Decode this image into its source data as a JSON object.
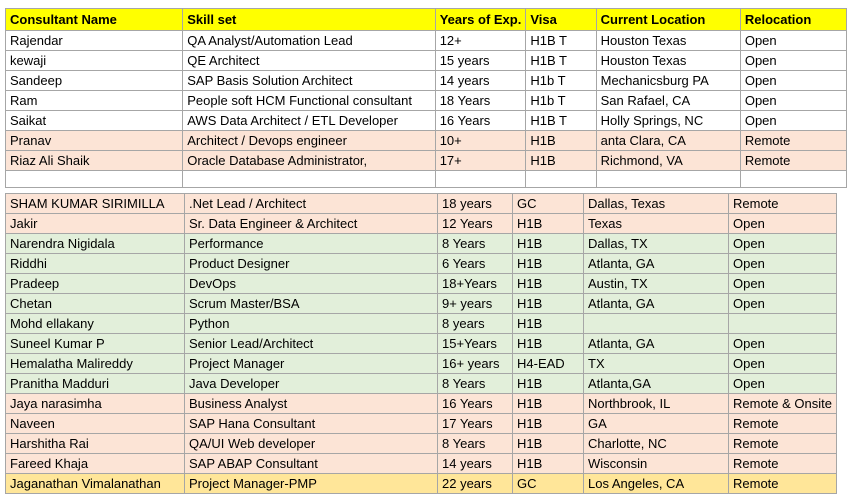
{
  "table": {
    "columns": [
      "Consultant Name",
      "Skill set",
      "Years of Exp.",
      "Visa",
      "Current Location",
      "Relocation"
    ],
    "header_bg": "#FFFF00",
    "border_color": "#A6A6A6",
    "row_colors": {
      "white": "#FFFFFF",
      "peach": "#FCE4D6",
      "green": "#E2EFDA",
      "gold": "#FFE699"
    },
    "sections": [
      {
        "rows": [
          {
            "bg": "white",
            "cells": [
              "Rajendar",
              "QA Analyst/Automation Lead",
              "12+",
              "H1B T",
              "Houston Texas",
              "Open"
            ]
          },
          {
            "bg": "white",
            "cells": [
              "kewaji",
              "QE Architect",
              "15 years",
              "H1B T",
              "Houston Texas",
              "Open"
            ]
          },
          {
            "bg": "white",
            "cells": [
              "Sandeep",
              "SAP Basis Solution Architect",
              "14 years",
              "H1b T",
              "Mechanicsburg PA",
              "Open"
            ]
          },
          {
            "bg": "white",
            "cells": [
              "Ram",
              "People soft HCM Functional consultant",
              "18 Years",
              "H1b T",
              "San Rafael, CA",
              "Open"
            ]
          },
          {
            "bg": "white",
            "cells": [
              "Saikat",
              "AWS Data Architect / ETL Developer",
              "16 Years",
              "H1B T",
              "Holly Springs, NC",
              "Open"
            ]
          },
          {
            "bg": "peach",
            "cells": [
              "Pranav",
              "Architect / Devops engineer",
              "10+",
              "H1B",
              "anta Clara, CA",
              "Remote"
            ]
          },
          {
            "bg": "peach",
            "cells": [
              "Riaz Ali Shaik",
              "Oracle Database Administrator,",
              "17+",
              "H1B",
              "Richmond, VA",
              "Remote"
            ]
          },
          {
            "bg": "white",
            "empty": true,
            "cells": [
              "",
              "",
              "",
              "",
              "",
              ""
            ]
          }
        ]
      },
      {
        "rows": [
          {
            "bg": "peach",
            "cells": [
              "SHAM KUMAR SIRIMILLA",
              ".Net Lead / Architect",
              "18 years",
              "GC",
              "Dallas, Texas",
              "Remote"
            ]
          },
          {
            "bg": "peach",
            "cells": [
              "Jakir",
              "Sr. Data Engineer & Architect",
              "12 Years",
              "H1B",
              "Texas",
              "Open"
            ]
          },
          {
            "bg": "green",
            "cells": [
              "Narendra Nigidala",
              "Performance",
              "8 Years",
              "H1B",
              "Dallas, TX",
              "Open"
            ]
          },
          {
            "bg": "green",
            "cells": [
              "Riddhi",
              "Product Designer",
              "6 Years",
              "H1B",
              "Atlanta, GA",
              "Open"
            ]
          },
          {
            "bg": "green",
            "cells": [
              "Pradeep",
              "DevOps",
              "18+Years",
              "H1B",
              "Austin, TX",
              "Open"
            ]
          },
          {
            "bg": "green",
            "cells": [
              "Chetan",
              "Scrum Master/BSA",
              "9+ years",
              "H1B",
              "Atlanta, GA",
              "Open"
            ]
          },
          {
            "bg": "green",
            "cells": [
              "Mohd ellakany",
              "Python",
              "8 years",
              "H1B",
              "",
              ""
            ]
          },
          {
            "bg": "green",
            "cells": [
              "Suneel Kumar P",
              "Senior Lead/Architect",
              "15+Years",
              "H1B",
              "Atlanta, GA",
              "Open"
            ]
          },
          {
            "bg": "green",
            "cells": [
              "Hemalatha Malireddy",
              "Project Manager",
              "16+ years",
              "H4-EAD",
              "TX",
              "Open"
            ]
          },
          {
            "bg": "green",
            "cells": [
              "Pranitha Madduri",
              "Java Developer",
              "8 Years",
              "H1B",
              "Atlanta,GA",
              "Open"
            ]
          },
          {
            "bg": "peach",
            "cells": [
              "Jaya narasimha",
              "Business Analyst",
              "16 Years",
              "H1B",
              "Northbrook, IL",
              "Remote & Onsite"
            ]
          },
          {
            "bg": "peach",
            "cells": [
              "Naveen",
              "SAP Hana Consultant",
              "17 Years",
              "H1B",
              "GA",
              "Remote"
            ]
          },
          {
            "bg": "peach",
            "cells": [
              "Harshitha Rai",
              "QA/UI Web developer",
              "8 Years",
              "H1B",
              "Charlotte, NC",
              "Remote"
            ]
          },
          {
            "bg": "peach",
            "cells": [
              "Fareed Khaja",
              "SAP ABAP Consultant",
              "14 years",
              "H1B",
              "Wisconsin",
              "Remote"
            ]
          },
          {
            "bg": "gold",
            "cells": [
              "Jaganathan Vimalanathan",
              "Project Manager-PMP",
              "22 years",
              "GC",
              "Los Angeles, CA",
              "Remote"
            ]
          }
        ]
      }
    ]
  }
}
